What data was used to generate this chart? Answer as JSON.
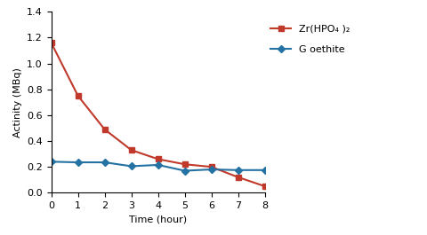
{
  "zr_x": [
    0,
    1,
    2,
    3,
    4,
    5,
    6,
    7,
    8
  ],
  "zr_y": [
    1.16,
    0.75,
    0.49,
    0.33,
    0.26,
    0.22,
    0.2,
    0.12,
    0.05
  ],
  "goethite_x": [
    0,
    1,
    2,
    3,
    4,
    5,
    6,
    7,
    8
  ],
  "goethite_y": [
    0.24,
    0.235,
    0.235,
    0.205,
    0.215,
    0.17,
    0.18,
    0.175,
    0.175
  ],
  "zr_color": "#c0392b",
  "goethite_color": "#2471a3",
  "zr_label": "Zr(HPO₄ )₂",
  "goethite_label": "G oethite",
  "xlabel": "Time (hour)",
  "ylabel": "Actinity (MBq)",
  "ylim": [
    0,
    1.4
  ],
  "xlim": [
    0,
    8
  ],
  "yticks": [
    0,
    0.2,
    0.4,
    0.6,
    0.8,
    1.0,
    1.2,
    1.4
  ],
  "xticks": [
    0,
    1,
    2,
    3,
    4,
    5,
    6,
    7,
    8
  ],
  "marker_zr": "s",
  "marker_goethite": "D",
  "linewidth": 1.5,
  "markersize": 4.5,
  "legend_fontsize": 8,
  "axis_fontsize": 8,
  "tick_fontsize": 8
}
